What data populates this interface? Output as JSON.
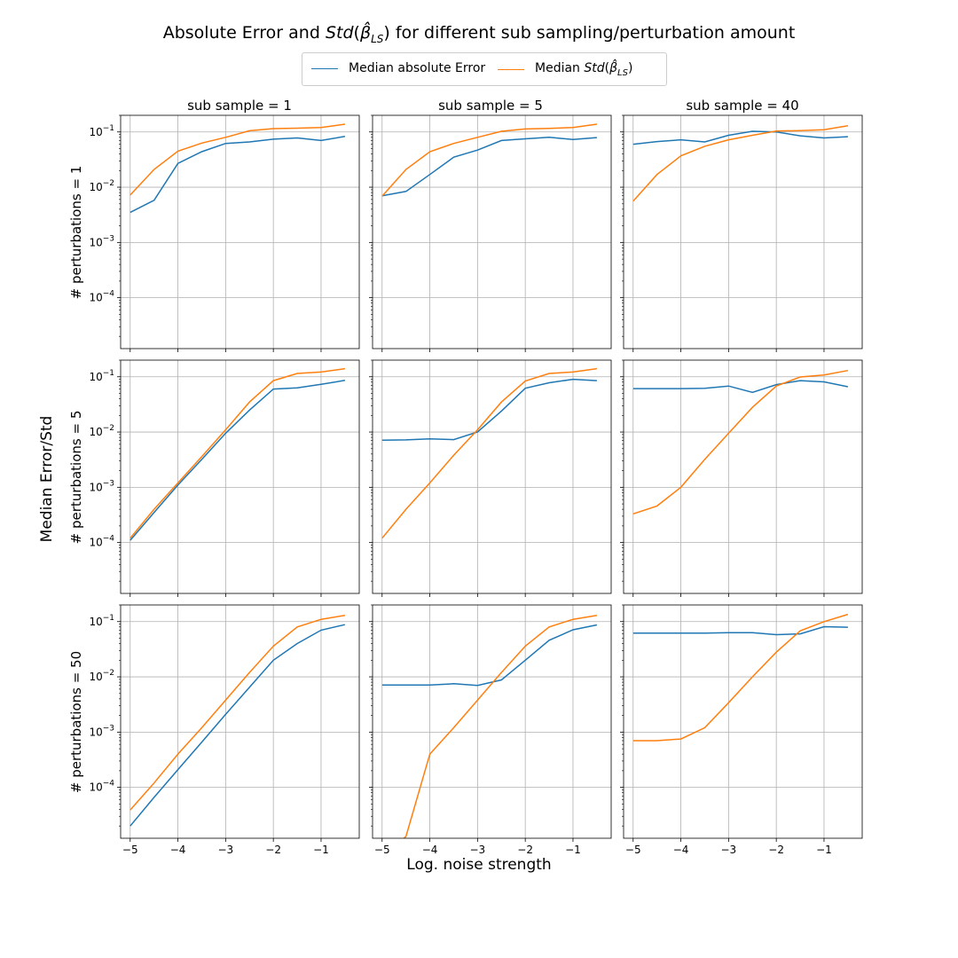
{
  "figure": {
    "title": "Absolute Error and Std(β̂_LS) for different sub sampling/perturbation amount",
    "title_parts": {
      "prefix": "Absolute Error and ",
      "std": "Std",
      "paren_open": "(",
      "beta": "β̂",
      "sub": "LS",
      "paren_close": ")",
      "suffix": " for different sub sampling/perturbation amount"
    },
    "ylabel": "Median Error/Std",
    "xlabel": "Log. noise strength"
  },
  "legend": {
    "placement": "top-center",
    "items": [
      {
        "label": "Median absolute Error",
        "color": "#1f77b4"
      },
      {
        "label_prefix": "Median ",
        "std": "Std",
        "beta": "β̂",
        "sub": "LS",
        "color": "#ff7f0e"
      }
    ]
  },
  "colors": {
    "error": "#1f77b4",
    "std": "#ff7f0e",
    "grid": "#b0b0b0"
  },
  "chart_data": {
    "type": "line",
    "grid": true,
    "yscale": "log",
    "xlim": [
      -5.2,
      -0.2
    ],
    "ylim": [
      1.2e-05,
      0.2
    ],
    "x_ticks": [
      -5,
      -4,
      -3,
      -2,
      -1
    ],
    "x_tick_labels": [
      "−5",
      "−4",
      "−3",
      "−2",
      "−1"
    ],
    "y_ticks": [
      0.0001,
      0.001,
      0.01,
      0.1
    ],
    "y_tick_labels": [
      {
        "base": "10",
        "exp": "−4"
      },
      {
        "base": "10",
        "exp": "−3"
      },
      {
        "base": "10",
        "exp": "−2"
      },
      {
        "base": "10",
        "exp": "−1"
      }
    ],
    "x": [
      -5,
      -4.5,
      -4,
      -3.5,
      -3,
      -2.5,
      -2,
      -1.5,
      -1,
      -0.5
    ],
    "col_titles": [
      "sub sample = 1",
      "sub sample = 5",
      "sub sample = 40"
    ],
    "row_labels": [
      "# perturbations = 1",
      "# perturbations = 5",
      "# perturbations = 50"
    ],
    "panels": [
      [
        {
          "error": [
            0.0035,
            0.0058,
            0.027,
            0.044,
            0.062,
            0.066,
            0.074,
            0.078,
            0.07,
            0.083
          ],
          "std": [
            0.0072,
            0.021,
            0.045,
            0.063,
            0.08,
            0.105,
            0.115,
            0.117,
            0.12,
            0.138
          ]
        },
        {
          "error": [
            0.007,
            0.0084,
            0.017,
            0.035,
            0.047,
            0.07,
            0.075,
            0.08,
            0.073,
            0.079
          ],
          "std": [
            0.0069,
            0.021,
            0.044,
            0.062,
            0.08,
            0.103,
            0.113,
            0.116,
            0.12,
            0.138
          ]
        },
        {
          "error": [
            0.06,
            0.067,
            0.072,
            0.066,
            0.087,
            0.103,
            0.1,
            0.085,
            0.078,
            0.082
          ],
          "std": [
            0.0056,
            0.017,
            0.037,
            0.055,
            0.072,
            0.087,
            0.104,
            0.106,
            0.11,
            0.13
          ]
        }
      ],
      [
        {
          "error": [
            0.00011,
            0.00035,
            0.0011,
            0.0032,
            0.0095,
            0.025,
            0.06,
            0.063,
            0.073,
            0.086
          ],
          "std": [
            0.00012,
            0.0004,
            0.0012,
            0.0036,
            0.011,
            0.035,
            0.085,
            0.115,
            0.122,
            0.14
          ]
        },
        {
          "error": [
            0.0071,
            0.0072,
            0.0075,
            0.0073,
            0.01,
            0.024,
            0.062,
            0.078,
            0.09,
            0.085
          ],
          "std": [
            0.00012,
            0.0004,
            0.0012,
            0.0038,
            0.011,
            0.035,
            0.084,
            0.115,
            0.122,
            0.14
          ]
        },
        {
          "error": [
            0.061,
            0.061,
            0.061,
            0.062,
            0.068,
            0.052,
            0.072,
            0.085,
            0.081,
            0.066
          ],
          "std": [
            0.00033,
            0.00046,
            0.001,
            0.0032,
            0.0095,
            0.028,
            0.068,
            0.099,
            0.108,
            0.13
          ]
        }
      ],
      [
        {
          "error": [
            2e-05,
            6.6e-05,
            0.00021,
            0.00066,
            0.0021,
            0.0065,
            0.02,
            0.04,
            0.07,
            0.088
          ],
          "std": [
            3.9e-05,
            0.00012,
            0.0004,
            0.0012,
            0.0038,
            0.012,
            0.036,
            0.08,
            0.11,
            0.13
          ]
        },
        {
          "error": [
            0.0071,
            0.0071,
            0.0071,
            0.0075,
            0.007,
            0.0088,
            0.02,
            0.046,
            0.071,
            0.087
          ],
          "std": [
            4.8e-06,
            1.3e-05,
            0.0004,
            0.0012,
            0.0038,
            0.012,
            0.036,
            0.08,
            0.11,
            0.13
          ]
        },
        {
          "error": [
            0.062,
            0.062,
            0.062,
            0.062,
            0.063,
            0.063,
            0.058,
            0.06,
            0.081,
            0.079
          ],
          "std": [
            0.0007,
            0.0007,
            0.00075,
            0.0012,
            0.0034,
            0.01,
            0.028,
            0.068,
            0.1,
            0.135
          ]
        }
      ]
    ]
  }
}
